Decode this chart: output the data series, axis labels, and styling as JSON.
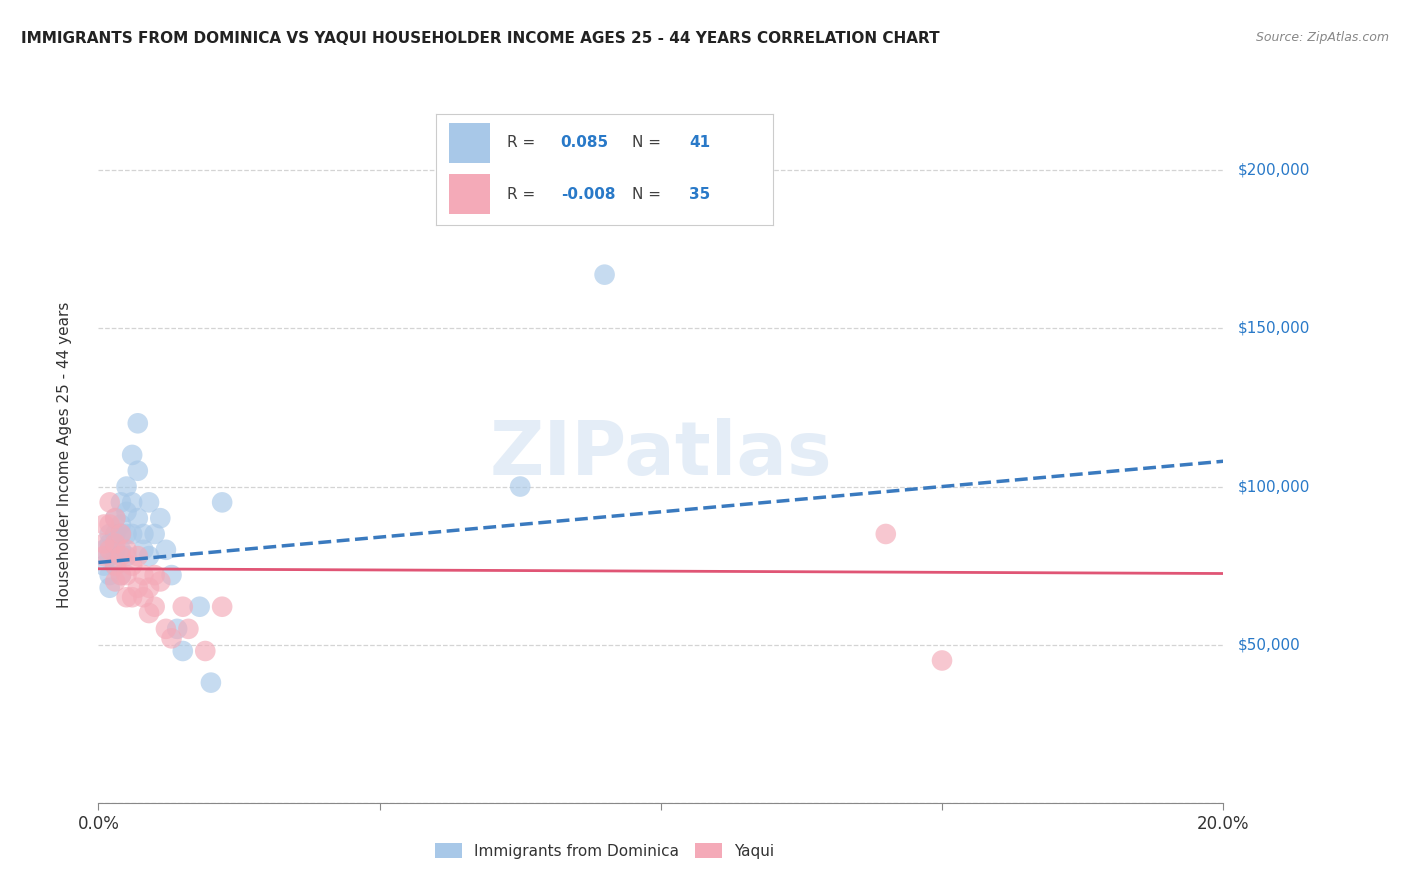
{
  "title": "IMMIGRANTS FROM DOMINICA VS YAQUI HOUSEHOLDER INCOME AGES 25 - 44 YEARS CORRELATION CHART",
  "source": "Source: ZipAtlas.com",
  "ylabel": "Householder Income Ages 25 - 44 years",
  "xlim": [
    0.0,
    0.2
  ],
  "ylim": [
    0,
    220000
  ],
  "yticks": [
    0,
    50000,
    100000,
    150000,
    200000
  ],
  "ytick_labels": [
    "",
    "$50,000",
    "$100,000",
    "$150,000",
    "$200,000"
  ],
  "xticks": [
    0.0,
    0.05,
    0.1,
    0.15,
    0.2
  ],
  "xtick_labels": [
    "0.0%",
    "",
    "",
    "",
    "20.0%"
  ],
  "blue_color": "#a8c8e8",
  "pink_color": "#f4aab8",
  "blue_line_color": "#3a7abf",
  "pink_line_color": "#e05575",
  "watermark": "ZIPatlas",
  "blue_scatter_x": [
    0.001,
    0.001,
    0.002,
    0.002,
    0.002,
    0.002,
    0.002,
    0.003,
    0.003,
    0.003,
    0.003,
    0.004,
    0.004,
    0.004,
    0.004,
    0.004,
    0.005,
    0.005,
    0.005,
    0.005,
    0.006,
    0.006,
    0.006,
    0.007,
    0.007,
    0.007,
    0.008,
    0.008,
    0.009,
    0.009,
    0.01,
    0.011,
    0.012,
    0.013,
    0.014,
    0.015,
    0.018,
    0.02,
    0.022,
    0.075,
    0.09
  ],
  "blue_scatter_y": [
    80000,
    75000,
    85000,
    82000,
    78000,
    72000,
    68000,
    90000,
    85000,
    80000,
    75000,
    95000,
    88000,
    85000,
    80000,
    72000,
    100000,
    92000,
    85000,
    78000,
    110000,
    95000,
    85000,
    120000,
    105000,
    90000,
    85000,
    80000,
    95000,
    78000,
    85000,
    90000,
    80000,
    72000,
    55000,
    48000,
    62000,
    38000,
    95000,
    100000,
    167000
  ],
  "pink_scatter_x": [
    0.001,
    0.001,
    0.001,
    0.002,
    0.002,
    0.002,
    0.003,
    0.003,
    0.003,
    0.003,
    0.004,
    0.004,
    0.004,
    0.005,
    0.005,
    0.005,
    0.006,
    0.006,
    0.007,
    0.007,
    0.008,
    0.008,
    0.009,
    0.009,
    0.01,
    0.01,
    0.011,
    0.012,
    0.013,
    0.015,
    0.016,
    0.019,
    0.022,
    0.14,
    0.15
  ],
  "pink_scatter_y": [
    88000,
    82000,
    78000,
    95000,
    88000,
    80000,
    90000,
    82000,
    75000,
    70000,
    85000,
    78000,
    72000,
    80000,
    72000,
    65000,
    75000,
    65000,
    78000,
    68000,
    72000,
    65000,
    68000,
    60000,
    72000,
    62000,
    70000,
    55000,
    52000,
    62000,
    55000,
    48000,
    62000,
    85000,
    45000
  ],
  "blue_trend_x": [
    0.0,
    0.2
  ],
  "blue_trend_y": [
    76000,
    108000
  ],
  "pink_trend_x": [
    0.0,
    0.2
  ],
  "pink_trend_y": [
    74000,
    72500
  ],
  "grid_color": "#d0d0d0",
  "bg_color": "#ffffff",
  "legend1_r": "0.085",
  "legend1_n": "41",
  "legend2_r": "-0.008",
  "legend2_n": "35",
  "bottom_legend1": "Immigrants from Dominica",
  "bottom_legend2": "Yaqui",
  "text_blue": "#2979c8",
  "text_dark": "#404040"
}
